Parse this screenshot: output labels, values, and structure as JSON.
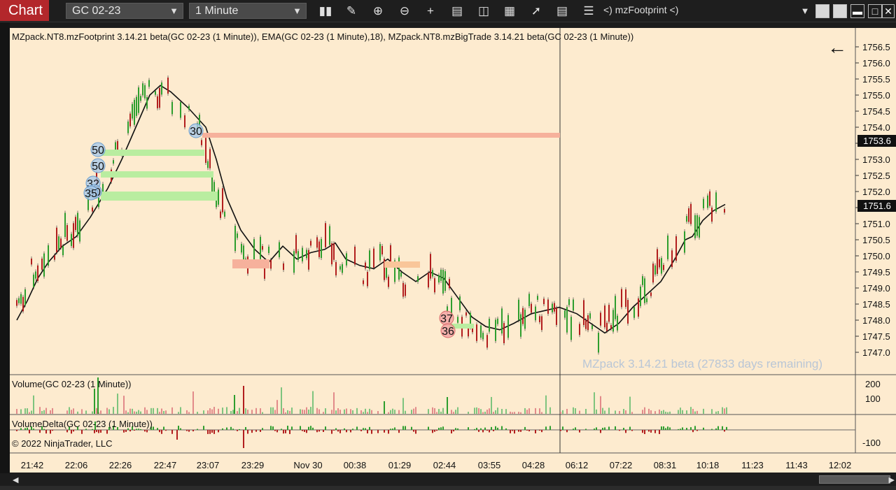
{
  "toolbar": {
    "tab_label": "Chart",
    "instrument": "GC 02-23",
    "interval": "1 Minute",
    "indicator_label": "<)  mzFootprint     <)",
    "icons": [
      "bar-type-icon",
      "draw-pen-icon",
      "zoom-in-icon",
      "zoom-out-icon",
      "crosshair-icon",
      "data-box-icon",
      "chart-trader-icon",
      "strategies-icon",
      "indicators-icon",
      "templates-icon",
      "properties-icon"
    ],
    "window_buttons": [
      "dropdown-icon",
      "restore-icon",
      "tile-icon",
      "maximize-icon",
      "close-icon"
    ]
  },
  "panels": {
    "price_header": "MZpack.NT8.mzFootprint 3.14.21 beta(GC 02-23 (1 Minute)), EMA(GC 02-23 (1 Minute),18), MZpack.NT8.mzBigTrade 3.14.21 beta(GC 02-23 (1 Minute))",
    "volume_header": "Volume(GC 02-23 (1 Minute))",
    "delta_header": "VolumeDelta(GC 02-23 (1 Minute))",
    "copyright": "© 2022 NinjaTrader, LLC",
    "watermark": "MZpack 3.14.21 beta  (27833 days remaining)"
  },
  "price_axis": [
    "1756.5",
    "1756.0",
    "1755.5",
    "1755.0",
    "1754.5",
    "1754.0",
    "1753.5",
    "1753.0",
    "1752.5",
    "1752.0",
    "1751.5",
    "1751.0",
    "1750.5",
    "1750.0",
    "1749.5",
    "1749.0",
    "1748.5",
    "1748.0",
    "1747.5",
    "1747.0"
  ],
  "price_tags": [
    "1753.6",
    "1751.6"
  ],
  "volume_axis": [
    "200",
    "100"
  ],
  "delta_axis": [
    "-100"
  ],
  "time_axis": [
    "21:42",
    "22:06",
    "22:26",
    "22:47",
    "23:07",
    "23:29",
    "Nov 30",
    "00:38",
    "01:29",
    "02:44",
    "03:55",
    "04:28",
    "06:12",
    "07:22",
    "08:31",
    "10:18",
    "11:23",
    "11:43",
    "12:02"
  ],
  "big_trades": [
    "30",
    "50",
    "50",
    "32",
    "50",
    "35",
    "37",
    "36"
  ],
  "colors": {
    "background": "#fdebcf",
    "up_bar": "#2e9e2e",
    "down_bar": "#b21e1e",
    "ema": "#111111",
    "buy_level": "#b9eda0",
    "sell_level": "#f6b19c",
    "title_tab": "#b3272b"
  }
}
